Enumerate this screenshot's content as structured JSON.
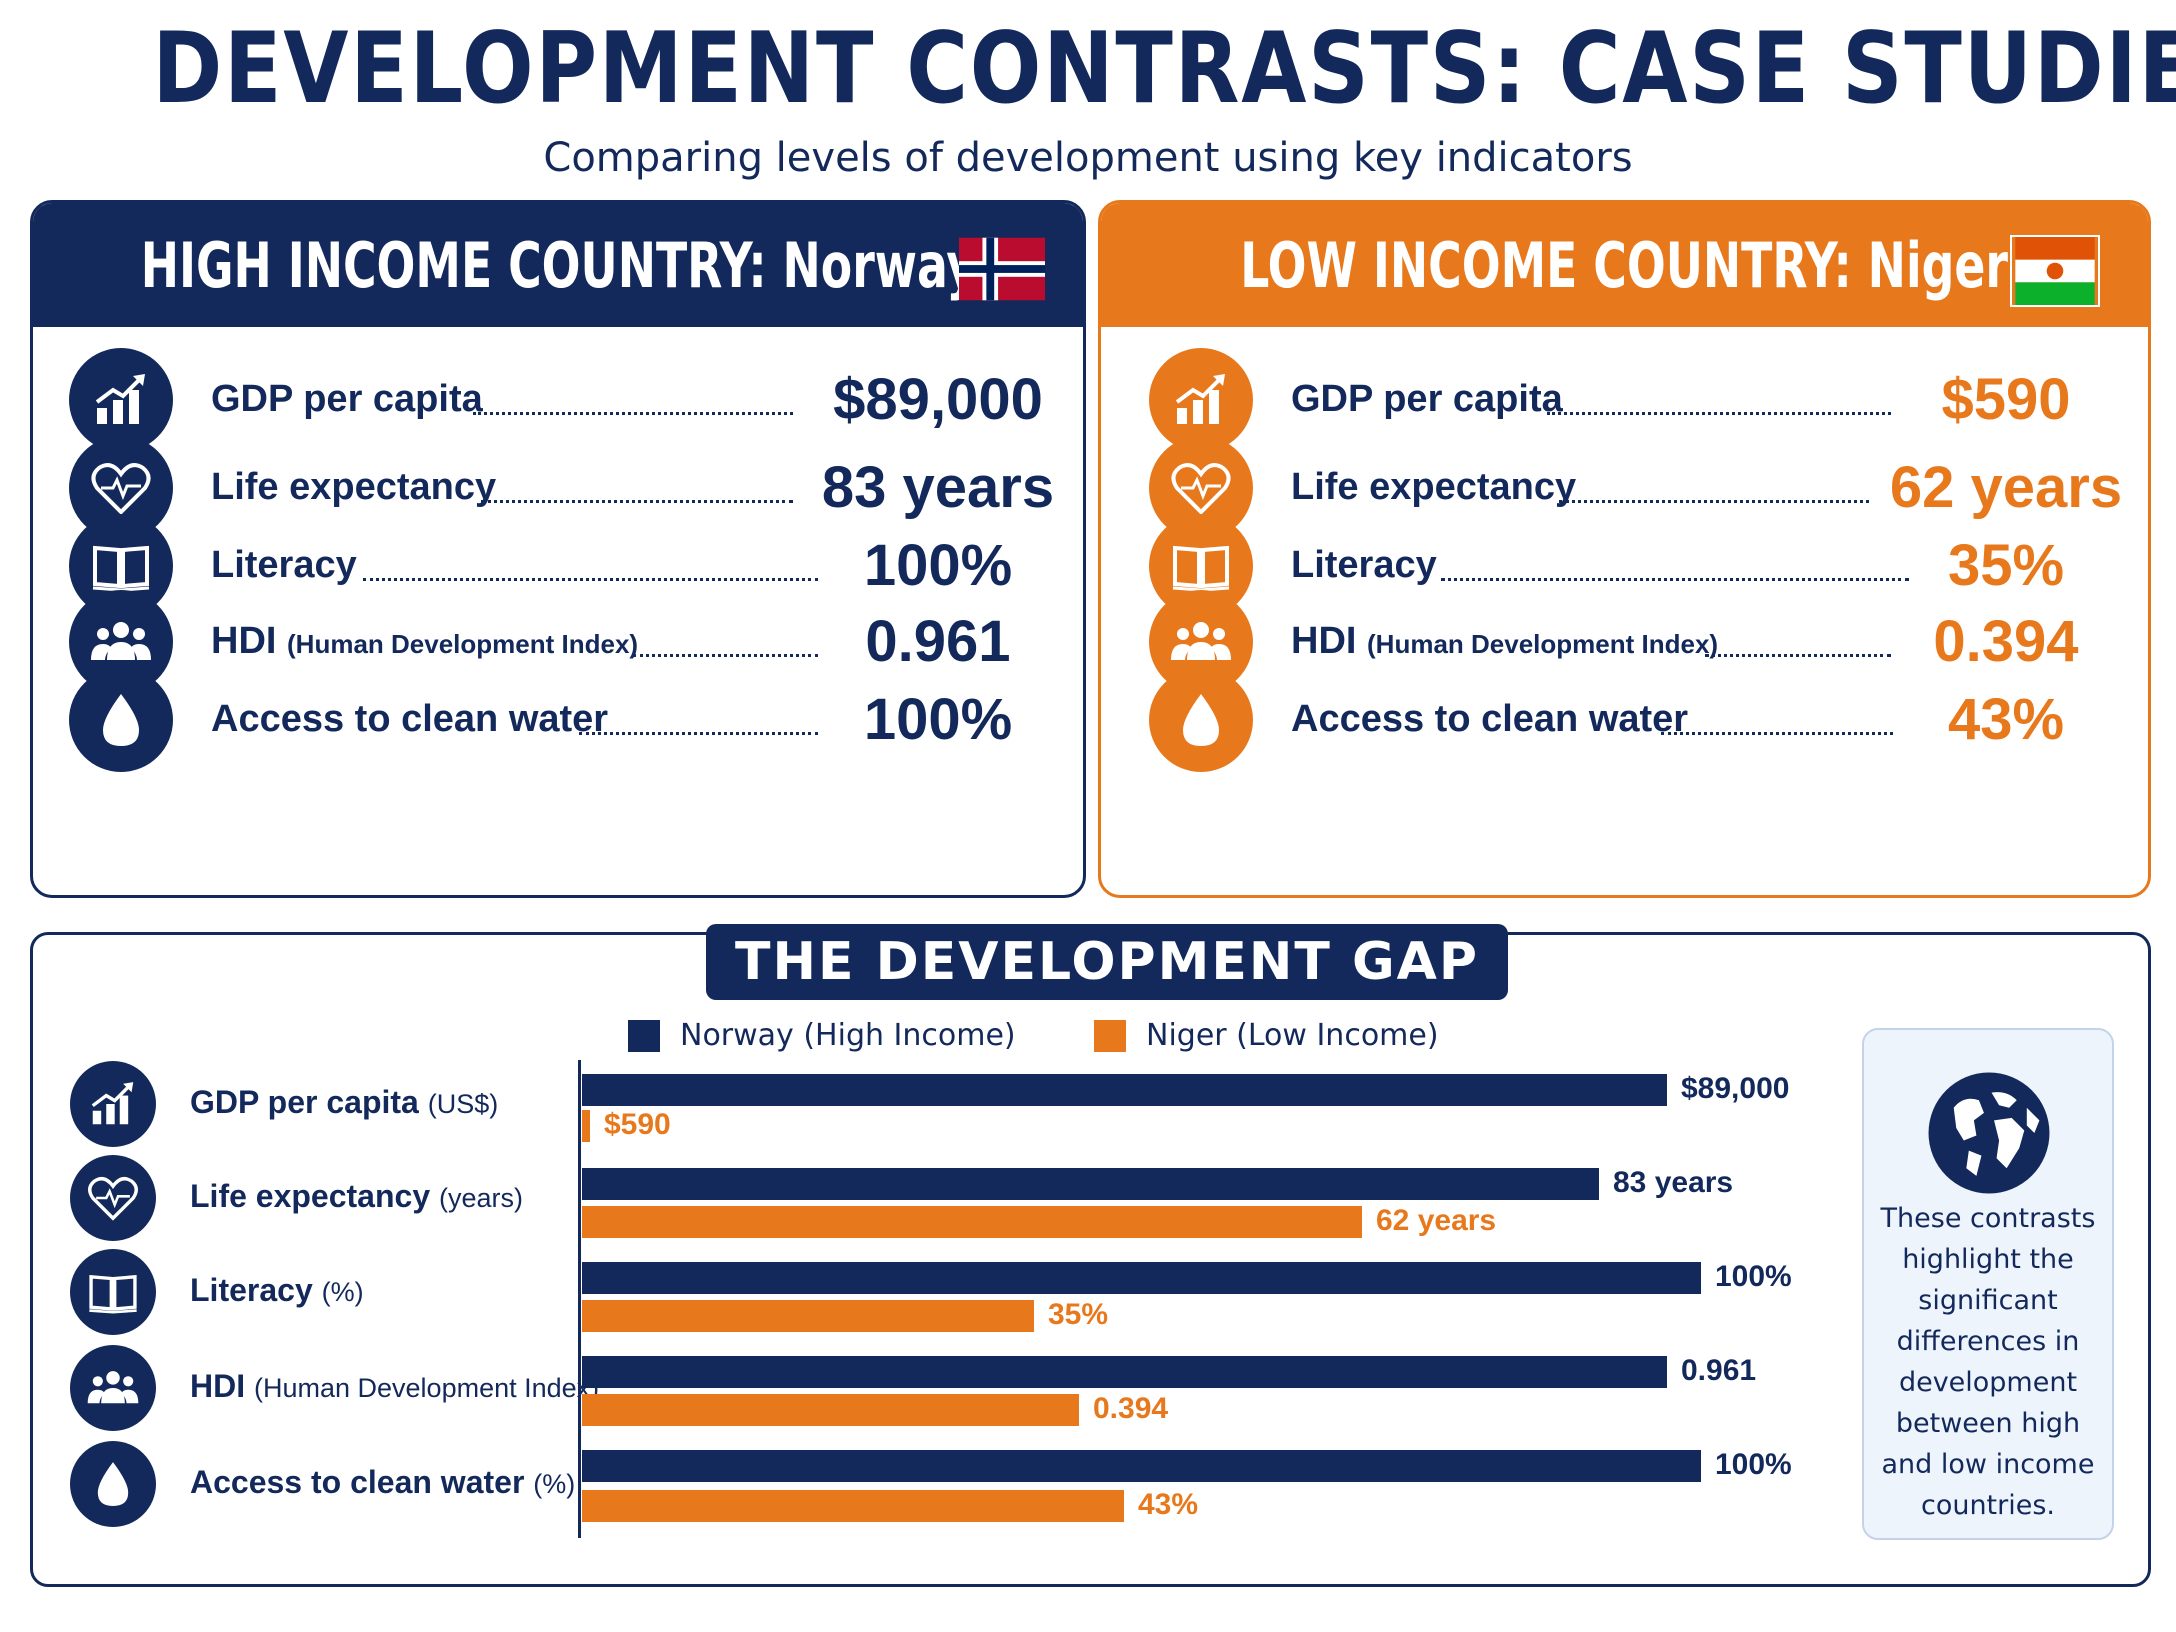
{
  "header": {
    "title": "DEVELOPMENT CONTRASTS: CASE STUDIES",
    "subtitle": "Comparing levels of development using key indicators"
  },
  "colors": {
    "norway": "#13295b",
    "niger": "#e8781c"
  },
  "norway_panel": {
    "title": "HIGH INCOME COUNTRY: Norway",
    "flag_icon": "norway-flag-icon",
    "rows": [
      {
        "icon": "gdp-chart-icon",
        "label": "GDP per capita",
        "value": "$89,000"
      },
      {
        "icon": "heart-pulse-icon",
        "label": "Life expectancy",
        "value": "83 years"
      },
      {
        "icon": "book-icon",
        "label": "Literacy",
        "value": "100%"
      },
      {
        "icon": "people-icon",
        "label": "HDI",
        "label_small": "(Human Development Index)",
        "value": "0.961"
      },
      {
        "icon": "water-drop-icon",
        "label": "Access to clean water",
        "value": "100%"
      }
    ]
  },
  "niger_panel": {
    "title": "LOW INCOME COUNTRY: Niger",
    "flag_icon": "niger-flag-icon",
    "rows": [
      {
        "icon": "gdp-chart-icon",
        "label": "GDP per capita",
        "value": "$590"
      },
      {
        "icon": "heart-pulse-icon",
        "label": "Life expectancy",
        "value": "62 years"
      },
      {
        "icon": "book-icon",
        "label": "Literacy",
        "value": "35%"
      },
      {
        "icon": "people-icon",
        "label": "HDI",
        "label_small": "(Human Development Index)",
        "value": "0.394"
      },
      {
        "icon": "water-drop-icon",
        "label": "Access to clean water",
        "value": "43%"
      }
    ]
  },
  "gap": {
    "title": "THE DEVELOPMENT GAP",
    "legend": [
      "Norway (High Income)",
      "Niger (Low Income)"
    ],
    "rows": [
      {
        "icon": "gdp-chart-icon",
        "label": "GDP per capita",
        "label_small": "(US$)"
      },
      {
        "icon": "heart-pulse-icon",
        "label": "Life expectancy",
        "label_small": "(years)"
      },
      {
        "icon": "book-icon",
        "label": "Literacy",
        "label_small": "(%)"
      },
      {
        "icon": "people-icon",
        "label": "HDI",
        "label_small": "(Human Development Index)"
      },
      {
        "icon": "water-drop-icon",
        "label": "Access to clean water",
        "label_small": "(%)"
      }
    ],
    "note": "These contrasts highlight the significant differences in development between high and low income countries.",
    "note_icon": "globe-icon"
  },
  "chart_data": {
    "type": "bar",
    "orientation": "horizontal",
    "title": "THE DEVELOPMENT GAP",
    "categories": [
      "GDP per capita (US$)",
      "Life expectancy (years)",
      "Literacy (%)",
      "HDI (Human Development Index)",
      "Access to clean water (%)"
    ],
    "series": [
      {
        "name": "Norway (High Income)",
        "values": [
          89000,
          83,
          100,
          0.961,
          100
        ],
        "labels": [
          "$89,000",
          "83 years",
          "100%",
          "0.961",
          "100%"
        ],
        "fill_fraction": [
          0.96,
          0.9,
          0.99,
          0.96,
          0.99
        ]
      },
      {
        "name": "Niger (Low Income)",
        "values": [
          590,
          62,
          35,
          0.394,
          43
        ],
        "labels": [
          "$590",
          "62 years",
          "35%",
          "0.394",
          "43%"
        ],
        "fill_fraction": [
          0.006,
          0.69,
          0.4,
          0.44,
          0.48
        ]
      }
    ],
    "legend": "top"
  }
}
